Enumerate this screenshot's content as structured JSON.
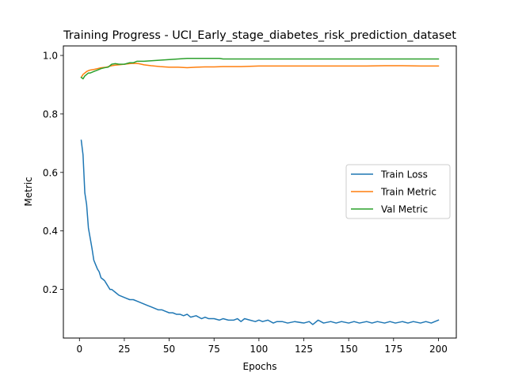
{
  "chart_data": {
    "type": "line",
    "title": "Training Progress - UCI_Early_stage_diabetes_risk_prediction_dataset",
    "xlabel": "Epochs",
    "ylabel": "Metric",
    "xlim": [
      -8.95,
      209.95
    ],
    "ylim": [
      0.0337,
      1.0326
    ],
    "xticks": [
      0,
      25,
      50,
      75,
      100,
      125,
      150,
      175,
      200
    ],
    "yticks": [
      0.2,
      0.4,
      0.6,
      0.8,
      1.0
    ],
    "ytick_labels": [
      "0.2",
      "0.4",
      "0.6",
      "0.8",
      "1.0"
    ],
    "grid": false,
    "legend": "center-right",
    "series": [
      {
        "name": "Train Loss",
        "color": "#1f77b4",
        "x": [
          1,
          2,
          3,
          4,
          5,
          6,
          7,
          8,
          9,
          10,
          11,
          12,
          13,
          14,
          15,
          16,
          17,
          18,
          19,
          20,
          22,
          24,
          26,
          28,
          30,
          32,
          34,
          36,
          38,
          40,
          42,
          44,
          46,
          48,
          50,
          52,
          54,
          56,
          58,
          60,
          62,
          65,
          68,
          70,
          72,
          75,
          78,
          80,
          83,
          86,
          88,
          90,
          92,
          95,
          98,
          100,
          102,
          105,
          108,
          110,
          113,
          116,
          120,
          125,
          128,
          130,
          133,
          136,
          140,
          143,
          146,
          150,
          153,
          156,
          160,
          163,
          166,
          170,
          173,
          176,
          180,
          183,
          186,
          190,
          193,
          196,
          198,
          200
        ],
        "y": [
          0.71,
          0.66,
          0.53,
          0.49,
          0.41,
          0.375,
          0.34,
          0.3,
          0.285,
          0.27,
          0.26,
          0.24,
          0.235,
          0.23,
          0.22,
          0.21,
          0.2,
          0.2,
          0.195,
          0.19,
          0.18,
          0.175,
          0.17,
          0.165,
          0.165,
          0.16,
          0.155,
          0.15,
          0.145,
          0.14,
          0.135,
          0.13,
          0.13,
          0.125,
          0.12,
          0.12,
          0.115,
          0.115,
          0.11,
          0.115,
          0.105,
          0.11,
          0.1,
          0.105,
          0.1,
          0.1,
          0.095,
          0.1,
          0.095,
          0.095,
          0.1,
          0.09,
          0.1,
          0.095,
          0.09,
          0.095,
          0.09,
          0.095,
          0.085,
          0.09,
          0.09,
          0.085,
          0.09,
          0.085,
          0.09,
          0.08,
          0.095,
          0.085,
          0.09,
          0.085,
          0.09,
          0.085,
          0.09,
          0.085,
          0.09,
          0.085,
          0.09,
          0.085,
          0.09,
          0.085,
          0.09,
          0.085,
          0.09,
          0.085,
          0.09,
          0.085,
          0.09,
          0.095
        ]
      },
      {
        "name": "Train Metric",
        "color": "#ff7f0e",
        "x": [
          1,
          2,
          3,
          4,
          5,
          6,
          8,
          10,
          12,
          15,
          18,
          20,
          22,
          25,
          28,
          30,
          33,
          36,
          40,
          45,
          50,
          55,
          60,
          65,
          70,
          75,
          80,
          90,
          100,
          110,
          120,
          130,
          140,
          150,
          160,
          170,
          180,
          190,
          200
        ],
        "y": [
          0.925,
          0.935,
          0.94,
          0.945,
          0.948,
          0.95,
          0.952,
          0.955,
          0.958,
          0.96,
          0.965,
          0.967,
          0.968,
          0.97,
          0.972,
          0.973,
          0.972,
          0.968,
          0.965,
          0.962,
          0.96,
          0.96,
          0.958,
          0.96,
          0.961,
          0.961,
          0.962,
          0.962,
          0.964,
          0.964,
          0.964,
          0.964,
          0.964,
          0.964,
          0.964,
          0.965,
          0.965,
          0.964,
          0.964
        ]
      },
      {
        "name": "Val Metric",
        "color": "#2ca02c",
        "x": [
          1,
          2,
          3,
          4,
          5,
          6,
          8,
          10,
          12,
          14,
          16,
          18,
          20,
          22,
          25,
          28,
          30,
          32,
          34,
          36,
          40,
          45,
          50,
          55,
          60,
          65,
          70,
          75,
          78,
          80,
          90,
          100,
          110,
          120,
          130,
          140,
          150,
          160,
          170,
          180,
          190,
          200
        ],
        "y": [
          0.925,
          0.92,
          0.93,
          0.935,
          0.94,
          0.94,
          0.945,
          0.95,
          0.955,
          0.958,
          0.96,
          0.97,
          0.972,
          0.97,
          0.97,
          0.975,
          0.975,
          0.98,
          0.98,
          0.98,
          0.982,
          0.984,
          0.986,
          0.988,
          0.99,
          0.99,
          0.99,
          0.99,
          0.99,
          0.988,
          0.988,
          0.988,
          0.988,
          0.988,
          0.988,
          0.988,
          0.988,
          0.988,
          0.988,
          0.988,
          0.988,
          0.988
        ]
      }
    ]
  }
}
